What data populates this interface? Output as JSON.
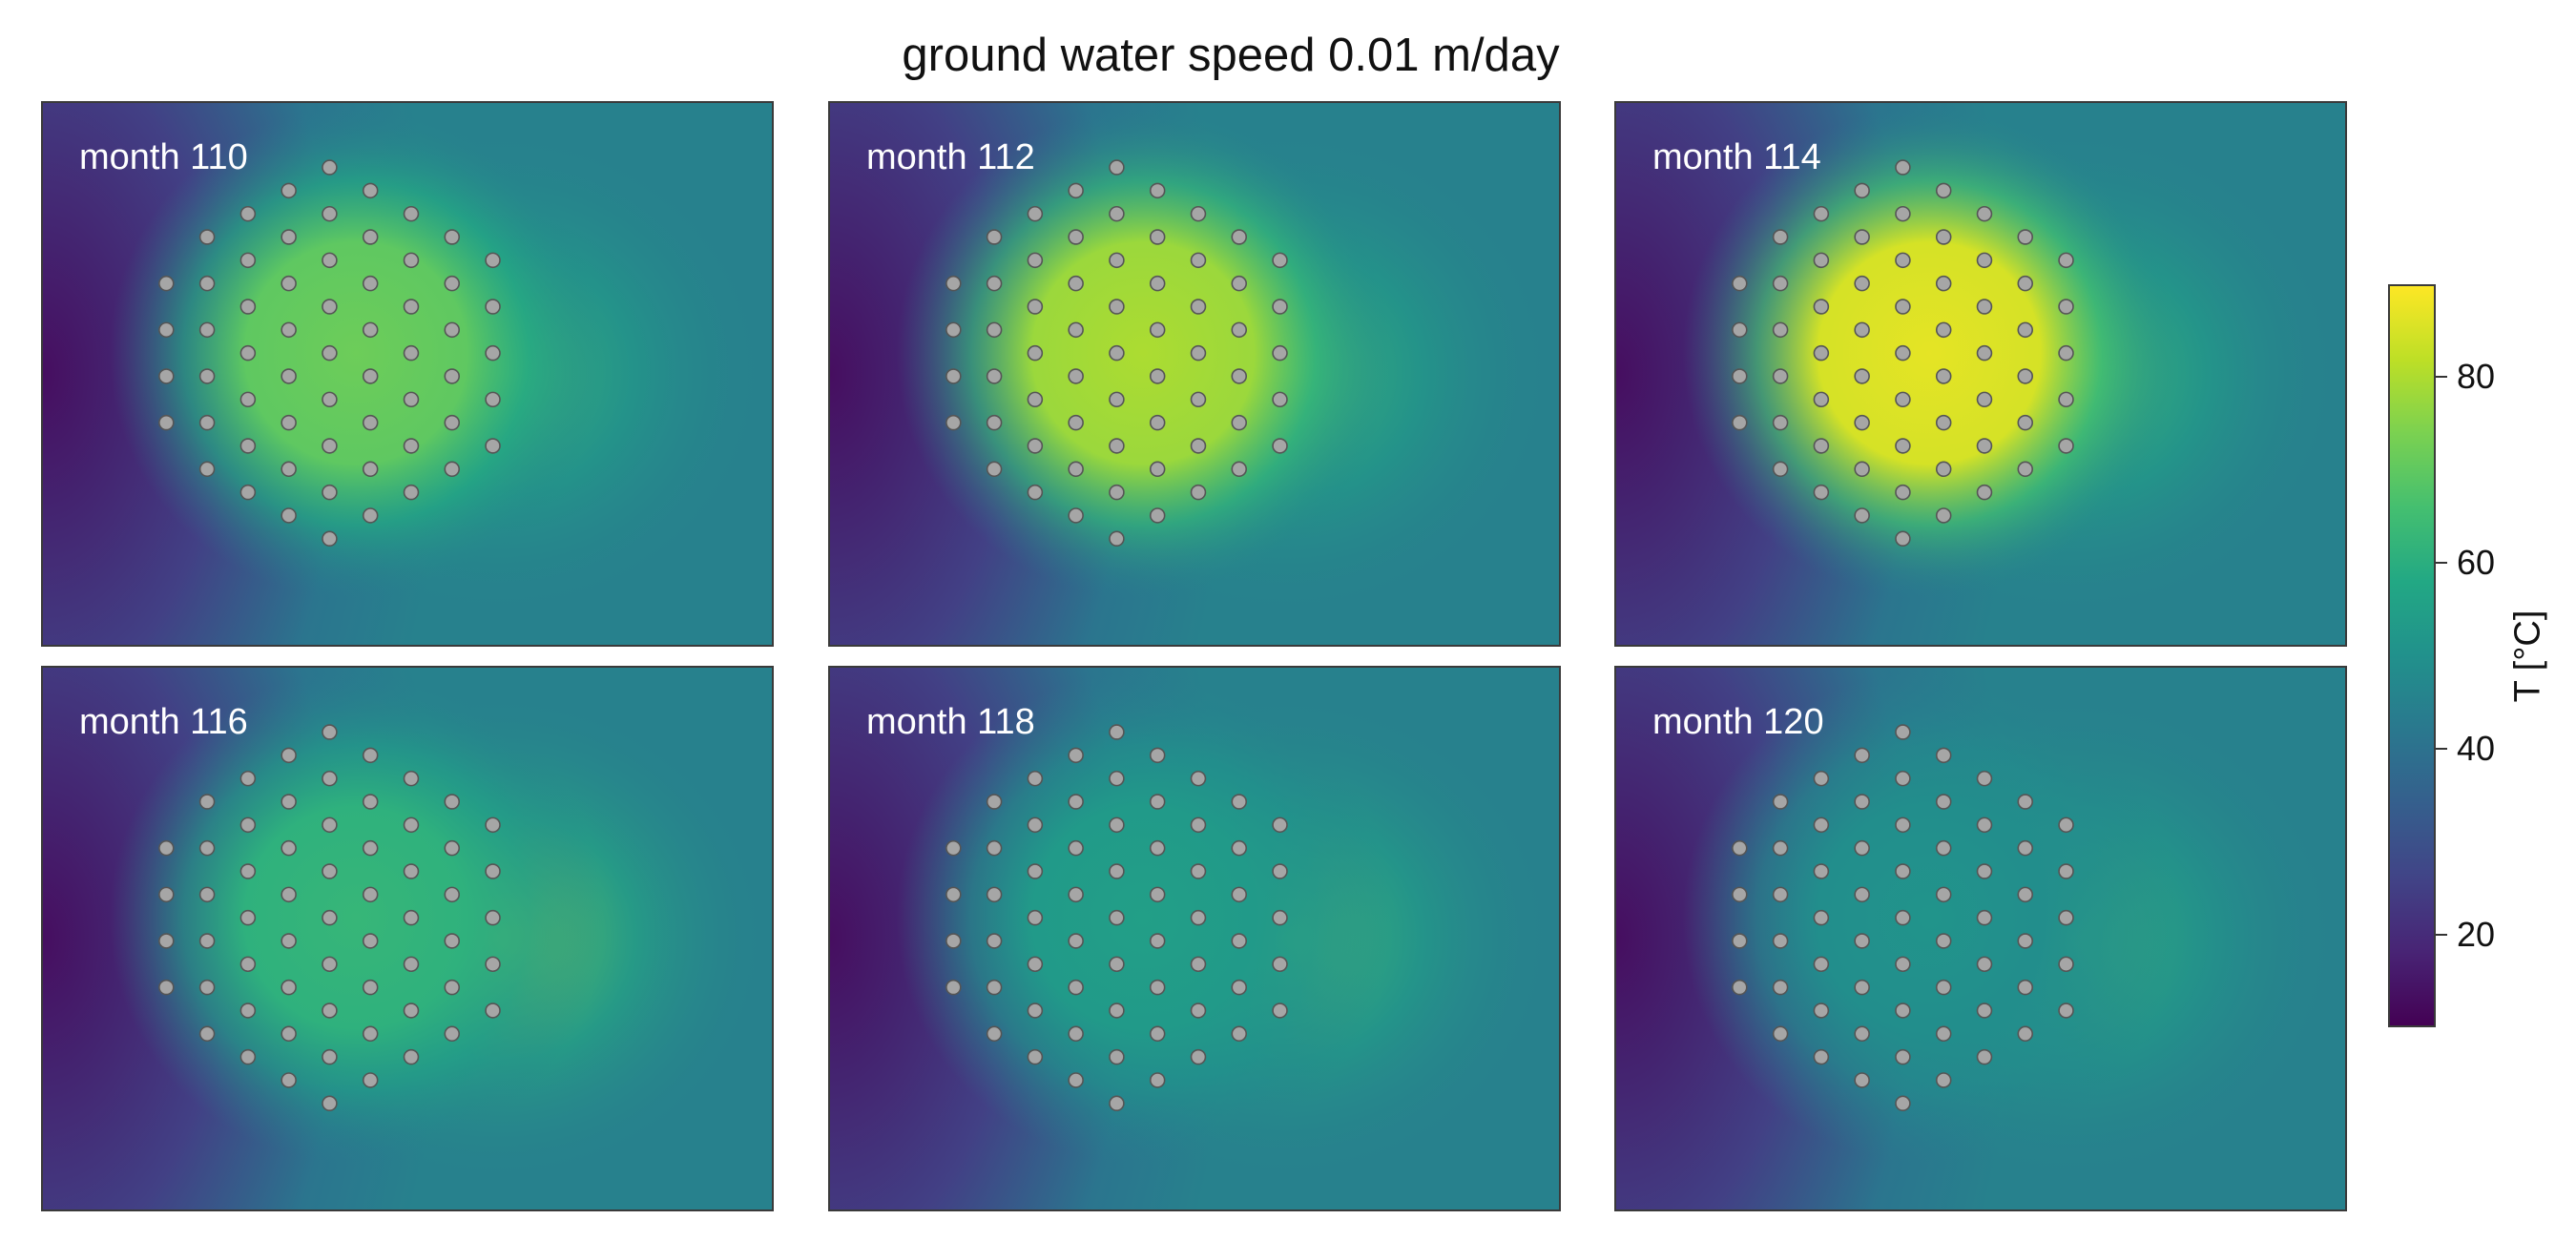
{
  "chart_data": {
    "type": "heatmap",
    "title": "ground water speed 0.01 m/day",
    "panels": [
      {
        "label": "month 110",
        "month": 110,
        "field_peak_T": 72,
        "plume_peak_T": 64
      },
      {
        "label": "month 112",
        "month": 112,
        "field_peak_T": 80,
        "plume_peak_T": 65
      },
      {
        "label": "month 114",
        "month": 114,
        "field_peak_T": 87,
        "plume_peak_T": 66
      },
      {
        "label": "month 116",
        "month": 116,
        "field_peak_T": 63,
        "plume_peak_T": 73
      },
      {
        "label": "month 118",
        "month": 118,
        "field_peak_T": 55,
        "plume_peak_T": 66
      },
      {
        "label": "month 120",
        "month": 120,
        "field_peak_T": 51,
        "plume_peak_T": 62
      }
    ],
    "background_T": 45,
    "boreholes": {
      "count": 61,
      "layout": "hexagonal",
      "color": "#a6a6a6"
    },
    "colorbar": {
      "label": "T [°C]",
      "range": [
        10,
        90
      ],
      "ticks": [
        20,
        40,
        60,
        80
      ],
      "colormap": "viridis"
    }
  }
}
